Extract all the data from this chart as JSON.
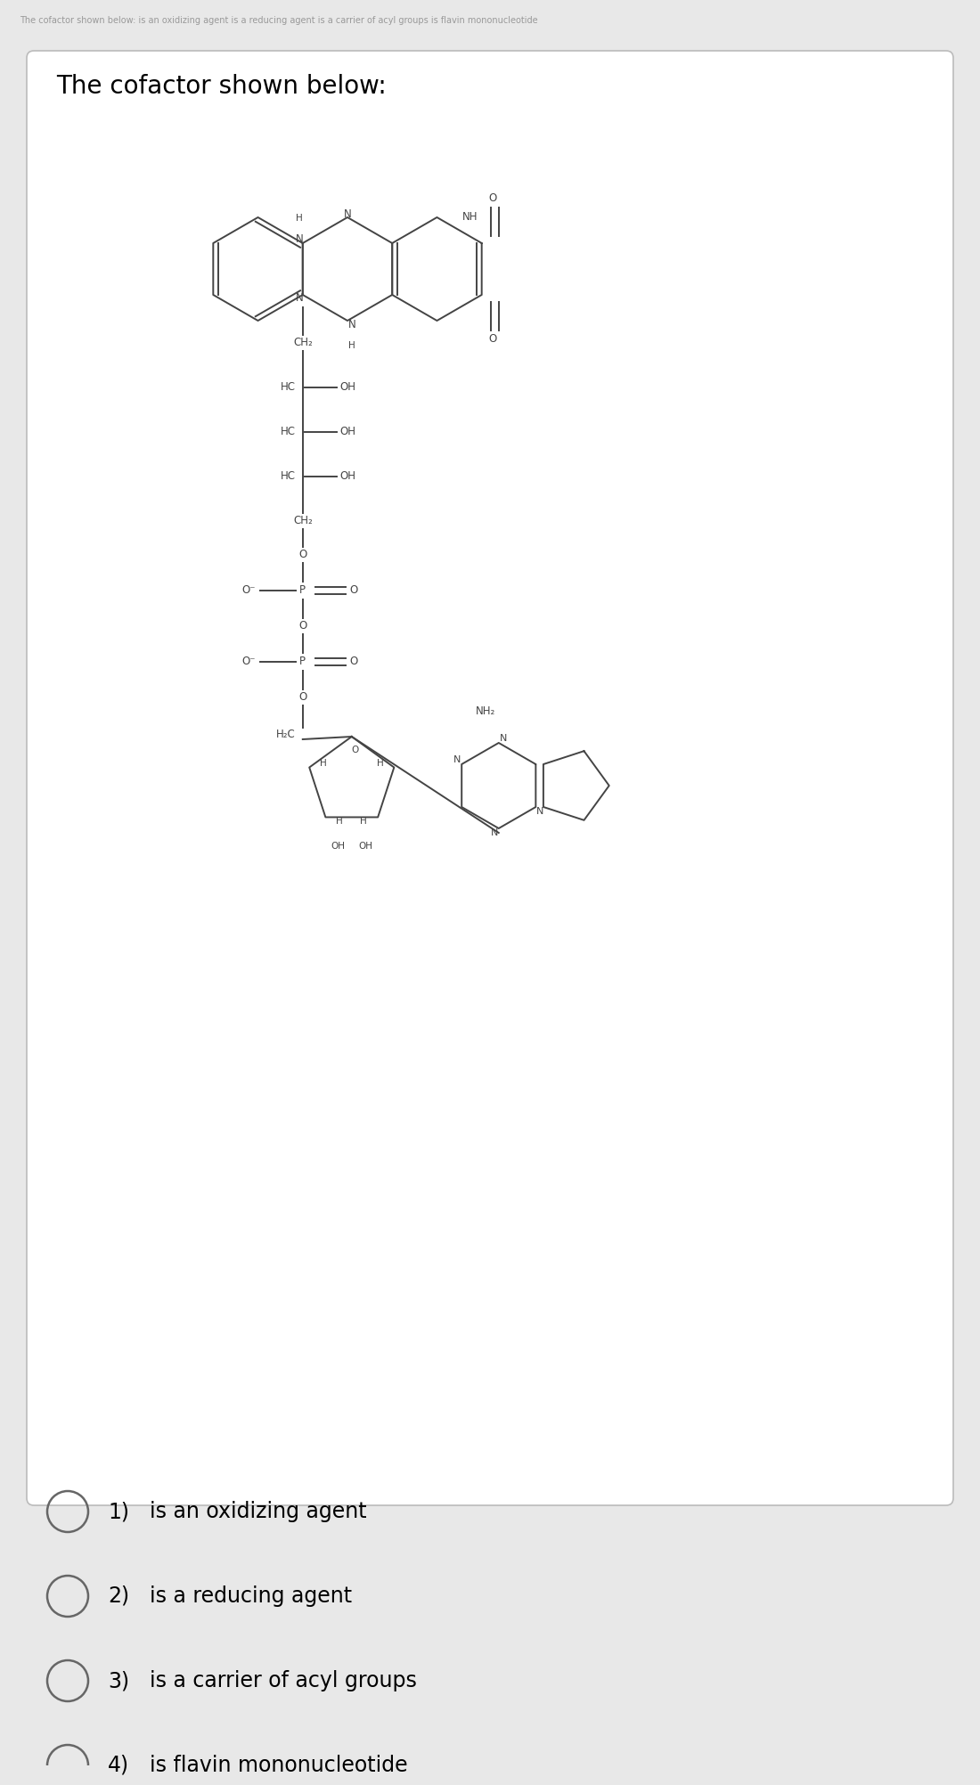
{
  "header_text": "The cofactor shown below: is an oxidizing agent is a reducing agent is a carrier of acyl groups is flavin mononucleotide",
  "title": "The cofactor shown below:",
  "options": [
    {
      "num": "1)",
      "text": "is an oxidizing agent"
    },
    {
      "num": "2)",
      "text": "is a reducing agent"
    },
    {
      "num": "3)",
      "text": "is a carrier of acyl groups"
    },
    {
      "num": "4)",
      "text": "is flavin mononucleotide"
    }
  ],
  "bg_color": "#e8e8e8",
  "card_color": "#ffffff",
  "text_color": "#000000",
  "header_color": "#999999",
  "border_color": "#cccccc",
  "line_color": "#444444",
  "fig_width": 10.8,
  "fig_height": 19.72
}
